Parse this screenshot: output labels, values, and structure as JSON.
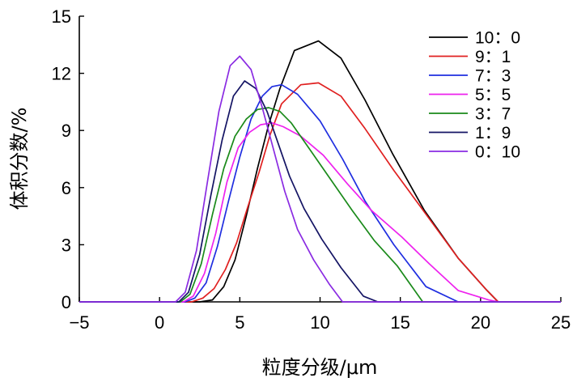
{
  "chart_data": {
    "type": "line",
    "title": "",
    "xlabel": "粒度分级/μm",
    "ylabel": "体积分数/%",
    "xlim": [
      -5,
      25
    ],
    "ylim": [
      0,
      15
    ],
    "xticks": [
      -5,
      0,
      5,
      10,
      15,
      20,
      25
    ],
    "yticks": [
      0,
      3,
      6,
      9,
      12,
      15
    ],
    "xtick_labels": [
      "−5",
      "0",
      "5",
      "10",
      "15",
      "20",
      "25"
    ],
    "ytick_labels": [
      "0",
      "3",
      "6",
      "9",
      "12",
      "15"
    ],
    "grid": false,
    "legend_position": "top-right",
    "series": [
      {
        "name": "10：0",
        "color": "#000000",
        "points": [
          [
            -5,
            0
          ],
          [
            2.5,
            0
          ],
          [
            3.3,
            0.1
          ],
          [
            4.0,
            0.8
          ],
          [
            4.7,
            2.2
          ],
          [
            5.4,
            4.5
          ],
          [
            6.1,
            7.0
          ],
          [
            6.8,
            9.3
          ],
          [
            7.5,
            11.2
          ],
          [
            8.4,
            13.2
          ],
          [
            9.9,
            13.7
          ],
          [
            11.3,
            12.8
          ],
          [
            12.8,
            10.6
          ],
          [
            14.5,
            7.8
          ],
          [
            16.5,
            4.8
          ],
          [
            18.6,
            2.3
          ],
          [
            20.4,
            0.6
          ],
          [
            21.1,
            0
          ],
          [
            25,
            0
          ]
        ]
      },
      {
        "name": "9：1",
        "color": "#e02020",
        "points": [
          [
            -5,
            0
          ],
          [
            2.0,
            0
          ],
          [
            2.7,
            0.2
          ],
          [
            3.4,
            0.7
          ],
          [
            4.1,
            1.7
          ],
          [
            4.8,
            3.1
          ],
          [
            5.5,
            5.0
          ],
          [
            6.2,
            6.8
          ],
          [
            6.9,
            8.8
          ],
          [
            7.6,
            10.4
          ],
          [
            8.8,
            11.4
          ],
          [
            9.9,
            11.5
          ],
          [
            11.3,
            10.8
          ],
          [
            12.8,
            9.1
          ],
          [
            14.6,
            6.9
          ],
          [
            16.6,
            4.6
          ],
          [
            18.6,
            2.3
          ],
          [
            20.4,
            0.6
          ],
          [
            21.1,
            0
          ],
          [
            25,
            0
          ]
        ]
      },
      {
        "name": "7：3",
        "color": "#1f2ee0",
        "points": [
          [
            -5,
            0
          ],
          [
            1.6,
            0
          ],
          [
            2.2,
            0.2
          ],
          [
            2.9,
            1.0
          ],
          [
            3.6,
            2.9
          ],
          [
            4.3,
            5.3
          ],
          [
            5.0,
            7.6
          ],
          [
            5.7,
            9.6
          ],
          [
            6.4,
            10.8
          ],
          [
            7.0,
            11.3
          ],
          [
            7.6,
            11.4
          ],
          [
            8.6,
            10.9
          ],
          [
            10.0,
            9.5
          ],
          [
            11.4,
            7.5
          ],
          [
            12.8,
            5.3
          ],
          [
            14.6,
            3.0
          ],
          [
            16.6,
            0.8
          ],
          [
            18.6,
            0
          ],
          [
            25,
            0
          ]
        ]
      },
      {
        "name": "5：5",
        "color": "#ee22ee",
        "points": [
          [
            -5,
            0
          ],
          [
            1.5,
            0
          ],
          [
            2.1,
            0.3
          ],
          [
            2.8,
            1.5
          ],
          [
            3.5,
            3.6
          ],
          [
            4.2,
            6.3
          ],
          [
            4.9,
            8.1
          ],
          [
            5.6,
            8.9
          ],
          [
            6.3,
            9.3
          ],
          [
            7.0,
            9.4
          ],
          [
            7.7,
            9.2
          ],
          [
            8.8,
            8.7
          ],
          [
            10.2,
            7.7
          ],
          [
            11.7,
            6.2
          ],
          [
            13.2,
            4.8
          ],
          [
            15.1,
            3.4
          ],
          [
            16.8,
            2.0
          ],
          [
            18.6,
            0.6
          ],
          [
            20.5,
            0.1
          ],
          [
            21.1,
            0
          ],
          [
            25,
            0
          ]
        ]
      },
      {
        "name": "3：7",
        "color": "#1a8a1a",
        "points": [
          [
            -5,
            0
          ],
          [
            1.3,
            0
          ],
          [
            1.9,
            0.4
          ],
          [
            2.6,
            2.0
          ],
          [
            3.3,
            4.6
          ],
          [
            4.0,
            7.0
          ],
          [
            4.7,
            8.7
          ],
          [
            5.4,
            9.6
          ],
          [
            6.1,
            10.1
          ],
          [
            6.8,
            10.2
          ],
          [
            7.5,
            10.0
          ],
          [
            8.2,
            9.4
          ],
          [
            9.2,
            8.2
          ],
          [
            10.6,
            6.5
          ],
          [
            12.0,
            4.8
          ],
          [
            13.4,
            3.2
          ],
          [
            14.8,
            1.9
          ],
          [
            16.4,
            0
          ],
          [
            25,
            0
          ]
        ]
      },
      {
        "name": "1：9",
        "color": "#141464",
        "points": [
          [
            -5,
            0
          ],
          [
            1.2,
            0
          ],
          [
            1.8,
            0.5
          ],
          [
            2.5,
            2.5
          ],
          [
            3.2,
            5.6
          ],
          [
            3.9,
            8.5
          ],
          [
            4.6,
            10.8
          ],
          [
            5.3,
            11.6
          ],
          [
            6.0,
            11.2
          ],
          [
            6.7,
            10.0
          ],
          [
            7.4,
            8.3
          ],
          [
            8.1,
            6.6
          ],
          [
            9.0,
            4.9
          ],
          [
            10.1,
            3.3
          ],
          [
            11.3,
            1.8
          ],
          [
            12.7,
            0.3
          ],
          [
            13.6,
            0
          ],
          [
            25,
            0
          ]
        ]
      },
      {
        "name": "0：10",
        "color": "#8a2be2",
        "points": [
          [
            -5,
            0
          ],
          [
            1.0,
            0
          ],
          [
            1.6,
            0.5
          ],
          [
            2.3,
            2.7
          ],
          [
            3.0,
            6.4
          ],
          [
            3.7,
            10.0
          ],
          [
            4.4,
            12.4
          ],
          [
            5.0,
            12.9
          ],
          [
            5.7,
            12.2
          ],
          [
            6.4,
            10.2
          ],
          [
            7.1,
            8.0
          ],
          [
            7.8,
            5.8
          ],
          [
            8.6,
            3.8
          ],
          [
            9.6,
            2.2
          ],
          [
            10.6,
            0.9
          ],
          [
            11.4,
            0
          ],
          [
            25,
            0
          ]
        ]
      }
    ]
  }
}
